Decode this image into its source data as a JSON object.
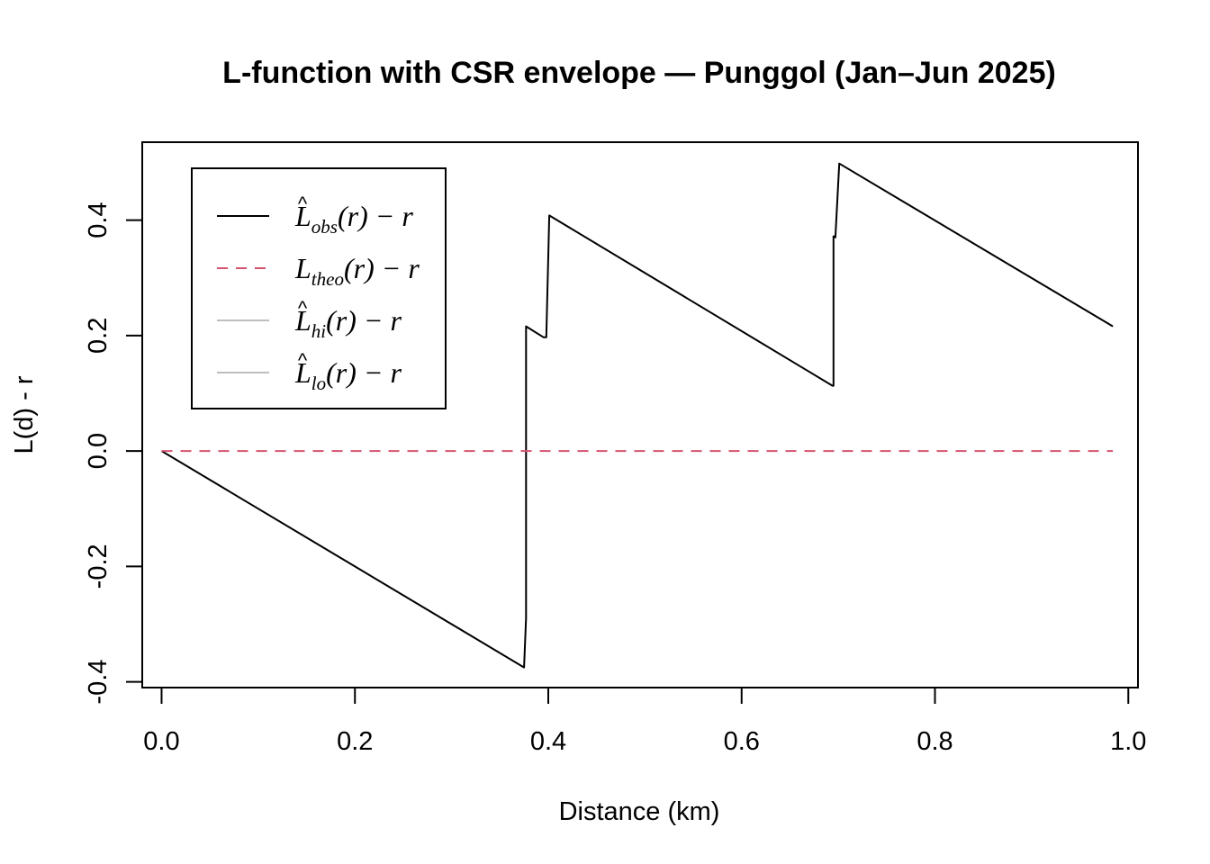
{
  "chart_data": {
    "type": "line",
    "title": "L-function with CSR envelope — Punggol (Jan–Jun 2025)",
    "xlabel": "Distance (km)",
    "ylabel": "L(d) - r",
    "xlim": [
      -0.02,
      1.01
    ],
    "ylim": [
      -0.41,
      0.535
    ],
    "x_ticks": [
      0.0,
      0.2,
      0.4,
      0.6,
      0.8,
      1.0
    ],
    "x_tick_labels": [
      "0.0",
      "0.2",
      "0.4",
      "0.6",
      "0.8",
      "1.0"
    ],
    "y_ticks": [
      -0.4,
      -0.2,
      0.0,
      0.2,
      0.4
    ],
    "y_tick_labels": [
      "-0.4",
      "-0.2",
      "0.0",
      "0.2",
      "0.4"
    ],
    "grid": false,
    "legend_position": "top-left",
    "series": [
      {
        "name": "obs",
        "legend": {
          "base": "L",
          "hat": true,
          "sub": "obs",
          "suffix": "(r) − r"
        },
        "color": "#000000",
        "dash": "solid",
        "x": [
          0.0,
          0.375,
          0.377,
          0.377,
          0.395,
          0.398,
          0.401,
          0.694,
          0.695,
          0.695,
          0.697,
          0.701,
          0.984
        ],
        "y": [
          0.0,
          -0.375,
          -0.29,
          0.216,
          0.197,
          0.197,
          0.408,
          0.113,
          0.113,
          0.372,
          0.37,
          0.498,
          0.216
        ]
      },
      {
        "name": "theo",
        "legend": {
          "base": "L",
          "hat": false,
          "sub": "theo",
          "suffix": "(r) − r"
        },
        "color": "#D4526E",
        "dash": "dashed",
        "x": [
          0.0,
          0.984
        ],
        "y": [
          0.0,
          0.0
        ]
      },
      {
        "name": "hi",
        "legend": {
          "base": "L",
          "hat": true,
          "sub": "hi",
          "suffix": "(r) − r"
        },
        "color": "#BEBEBE",
        "dash": "solid",
        "x": [],
        "y": []
      },
      {
        "name": "lo",
        "legend": {
          "base": "L",
          "hat": true,
          "sub": "lo",
          "suffix": "(r) − r"
        },
        "color": "#BEBEBE",
        "dash": "solid",
        "x": [],
        "y": []
      }
    ]
  }
}
